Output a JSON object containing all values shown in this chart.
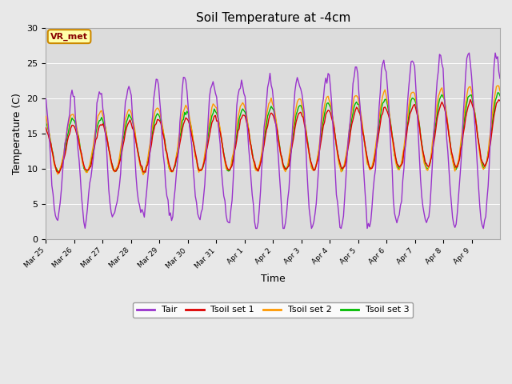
{
  "title": "Soil Temperature at -4cm",
  "xlabel": "Time",
  "ylabel": "Temperature (C)",
  "ylim": [
    0,
    30
  ],
  "fig_bg_color": "#e8e8e8",
  "plot_bg_color": "#dcdcdc",
  "colors": {
    "Tair": "#9933cc",
    "Tsoil1": "#dd0000",
    "Tsoil2": "#ff9900",
    "Tsoil3": "#00bb00"
  },
  "legend_labels": [
    "Tair",
    "Tsoil set 1",
    "Tsoil set 2",
    "Tsoil set 3"
  ],
  "annotation_text": "VR_met",
  "annotation_bg": "#ffffaa",
  "annotation_border": "#cc8800",
  "annotation_text_color": "#880000",
  "tick_labels": [
    "Mar 25",
    "Mar 26",
    "Mar 27",
    "Mar 28",
    "Mar 29",
    "Mar 30",
    "Mar 31",
    "Apr 1",
    "Apr 2",
    "Apr 3",
    "Apr 4",
    "Apr 5",
    "Apr 6",
    "Apr 7",
    "Apr 8",
    "Apr 9"
  ],
  "grid_color": "#c8c8c8",
  "linewidth": 1.0
}
